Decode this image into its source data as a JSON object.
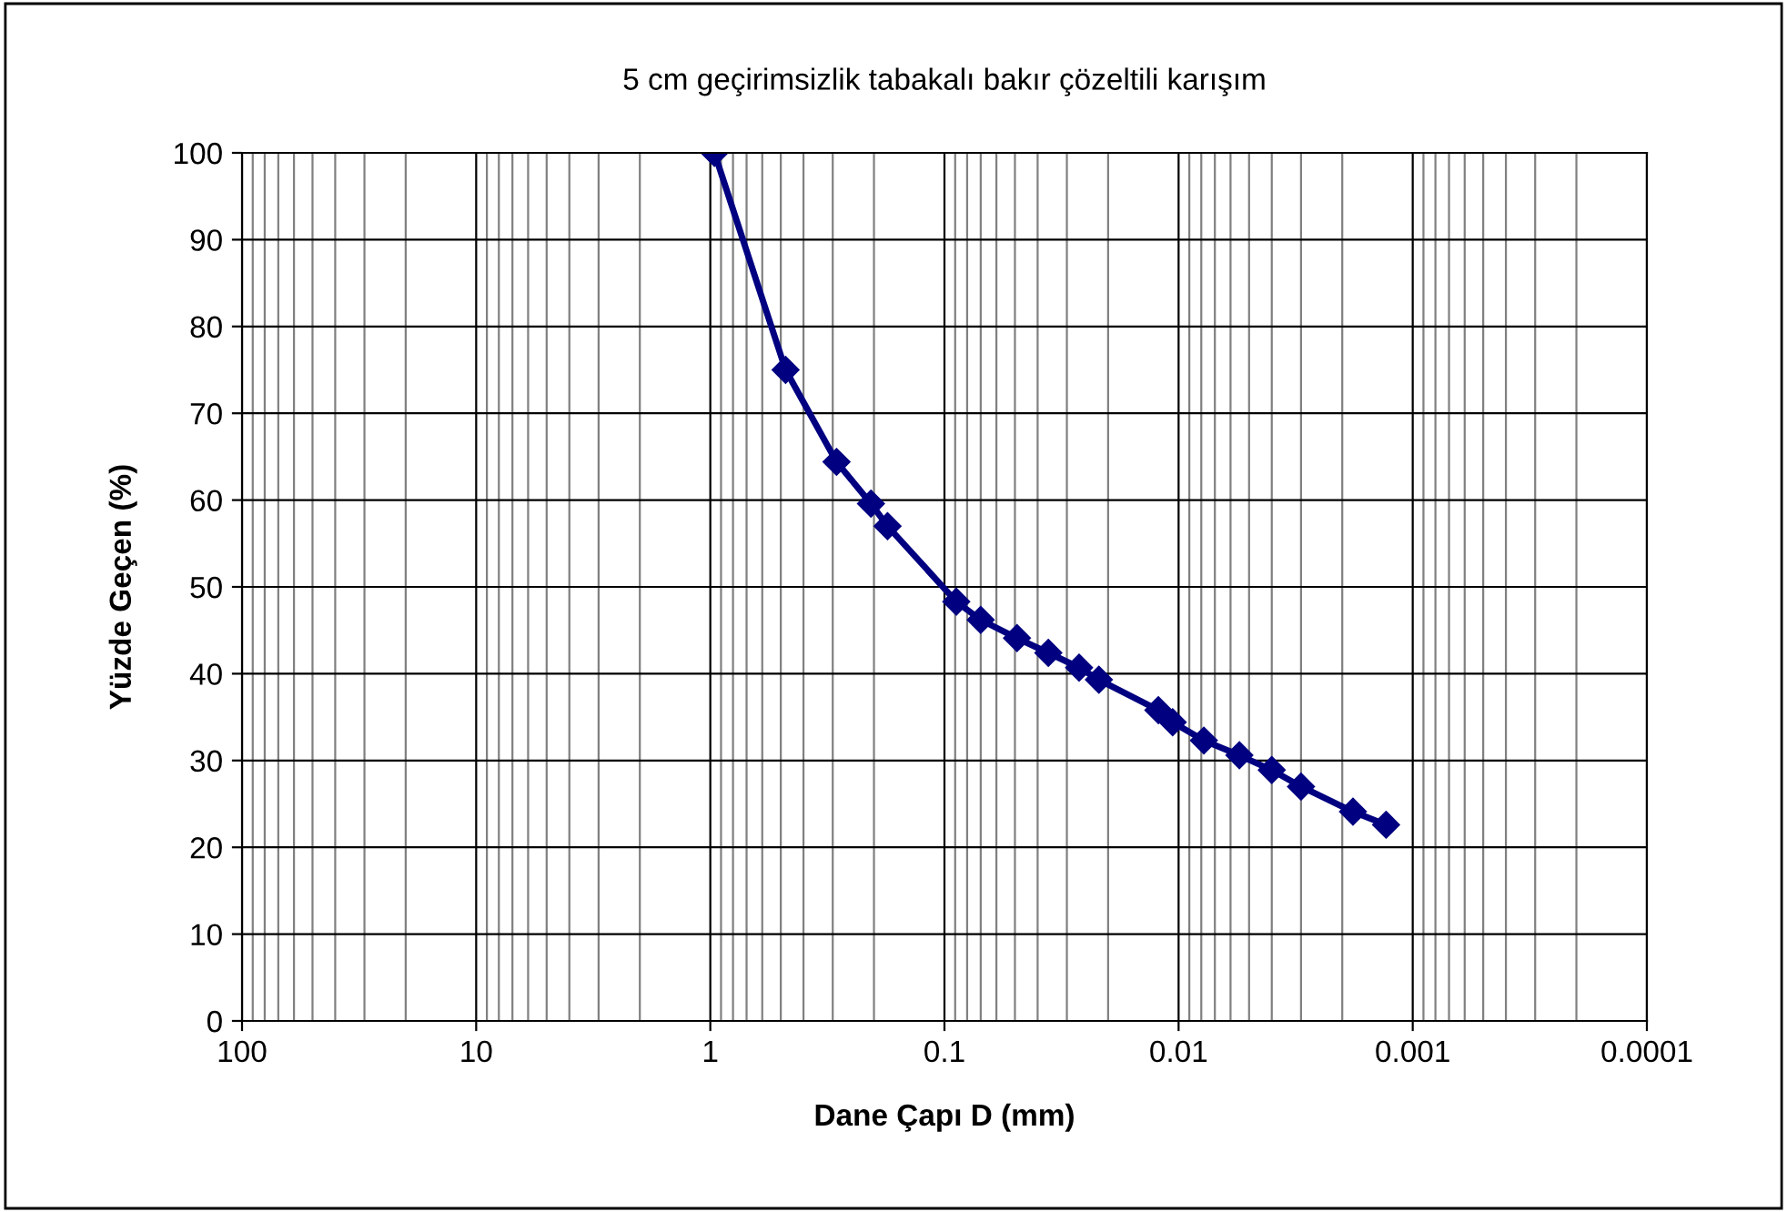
{
  "chart_data": {
    "type": "line",
    "title": "5 cm geçirimsizlik tabakalı bakır çözeltili karışım",
    "xlabel": "Dane Çapı D (mm)",
    "ylabel": "Yüzde Geçen (%)",
    "x": [
      0.96,
      0.477,
      0.289,
      0.206,
      0.175,
      0.089,
      0.07,
      0.049,
      0.036,
      0.0266,
      0.0219,
      0.0122,
      0.0106,
      0.0078,
      0.0055,
      0.004,
      0.003,
      0.0018,
      0.0013
    ],
    "series": [
      {
        "color": "#000080",
        "values": [
          100,
          75,
          64.4,
          59.6,
          57.0,
          48.3,
          46.2,
          44.1,
          42.4,
          40.7,
          39.3,
          35.8,
          34.4,
          32.3,
          30.6,
          28.9,
          27.0,
          24.1,
          22.6
        ]
      }
    ],
    "log": "x",
    "xlim": [
      100,
      0.0001
    ],
    "xticks": [
      {
        "value": 100,
        "label": "100"
      },
      {
        "value": 10,
        "label": "10"
      },
      {
        "value": 1,
        "label": "1"
      },
      {
        "value": 0.1,
        "label": "0.1"
      },
      {
        "value": 0.01,
        "label": "0.01"
      },
      {
        "value": 0.001,
        "label": "0.001"
      },
      {
        "value": 0.0001,
        "label": "0.0001"
      }
    ],
    "ylim": [
      0,
      100
    ],
    "yticks": [
      0,
      10,
      20,
      30,
      40,
      50,
      60,
      70,
      80,
      90,
      100
    ],
    "grid": true,
    "marker": "diamond",
    "line_style": "solid"
  }
}
